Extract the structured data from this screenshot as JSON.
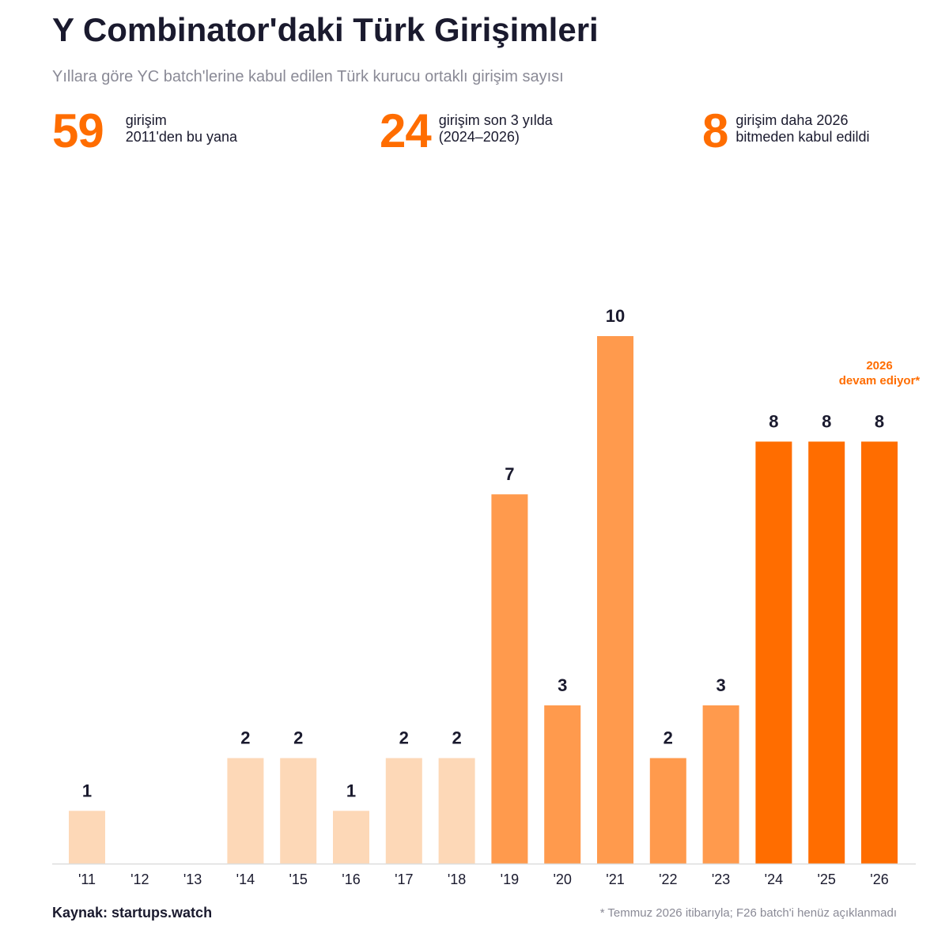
{
  "header": {
    "title": "Y Combinator'daki Türk Girişimleri",
    "subtitle": "Yıllara göre YC batch'lerine kabul edilen Türk kurucu ortaklı girişim sayısı"
  },
  "stats": [
    {
      "value": "59",
      "line1": "girişim",
      "line2": "2011'den bu yana"
    },
    {
      "value": "24",
      "line1": "girişim son 3 yılda",
      "line2": "(2024–2026)"
    },
    {
      "value": "8",
      "line1": "girişim daha 2026",
      "line2": "bitmeden kabul edildi"
    }
  ],
  "colors": {
    "accent": "#ff6d00",
    "light": "#fdd8b7",
    "medium": "#ff9a4d",
    "dark_text": "#1a1a2e",
    "muted_text": "#8a8a96",
    "axis": "#dddddd"
  },
  "chart_data": {
    "type": "bar",
    "categories": [
      "'11",
      "'12",
      "'13",
      "'14",
      "'15",
      "'16",
      "'17",
      "'18",
      "'19",
      "'20",
      "'21",
      "'22",
      "'23",
      "'24",
      "'25",
      "'26"
    ],
    "values": [
      1,
      0,
      0,
      2,
      2,
      1,
      2,
      2,
      7,
      3,
      10,
      2,
      3,
      8,
      8,
      8
    ],
    "color_groups": [
      "light",
      "light",
      "light",
      "light",
      "light",
      "light",
      "light",
      "light",
      "medium",
      "medium",
      "medium",
      "medium",
      "medium",
      "accent",
      "accent",
      "accent"
    ],
    "ylim": [
      0,
      10
    ],
    "grid": false,
    "annotation": {
      "category": "'26",
      "line1": "2026",
      "line2": "devam ediyor*"
    }
  },
  "footer": {
    "source": "Kaynak: startups.watch",
    "note": "* Temmuz 2026 itibarıyla; F26 batch'i henüz açıklanmadı"
  }
}
